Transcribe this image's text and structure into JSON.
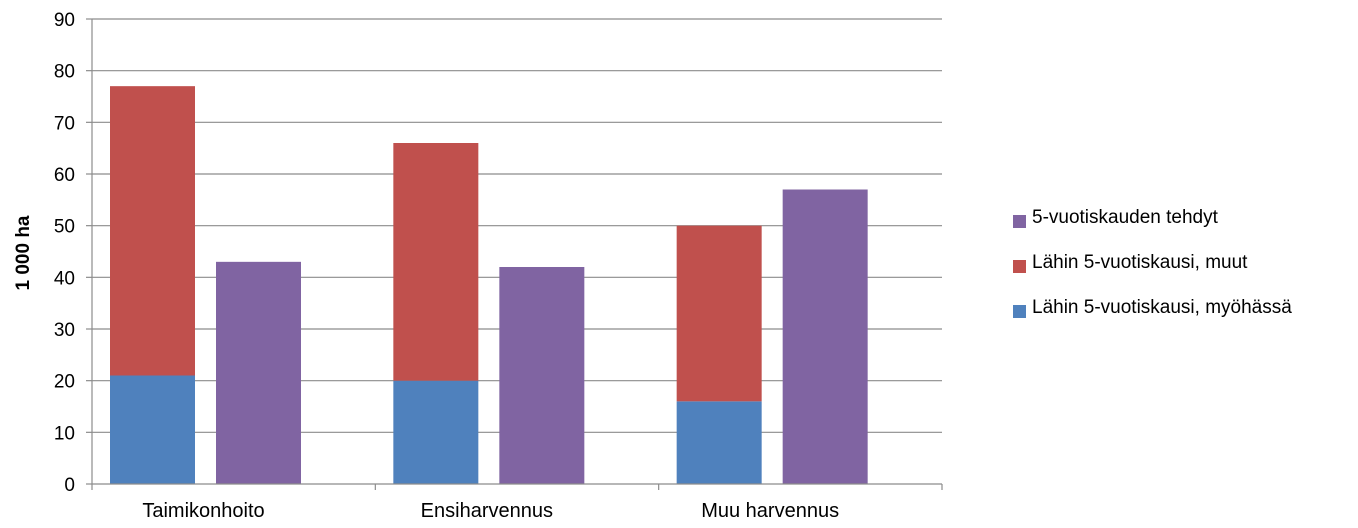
{
  "chart_data": {
    "type": "bar",
    "categories": [
      "Taimikonhoito",
      "Ensiharvennus",
      "Muu harvennus"
    ],
    "stacked_series": [
      {
        "name": "Lähin 5-vuotiskausi, myöhässä",
        "values": [
          21,
          20,
          16
        ],
        "color": "#4f81bd"
      },
      {
        "name": "Lähin 5-vuotiskausi, muut",
        "values": [
          56,
          46,
          34
        ],
        "color": "#c0504d"
      }
    ],
    "side_series": {
      "name": "5-vuotiskauden tehdyt",
      "values": [
        43,
        42,
        57
      ],
      "color": "#8064a2"
    },
    "legend_order": [
      "5-vuotiskauden tehdyt",
      "Lähin 5-vuotiskausi, muut",
      "Lähin 5-vuotiskausi, myöhässä"
    ],
    "title": "",
    "xlabel": "",
    "ylabel": "1 000 ha",
    "ylim": [
      0,
      90
    ],
    "yticks": [
      "0",
      "10",
      "20",
      "30",
      "40",
      "50",
      "60",
      "70",
      "80",
      "90"
    ],
    "grid": true,
    "legend_position": "right"
  }
}
